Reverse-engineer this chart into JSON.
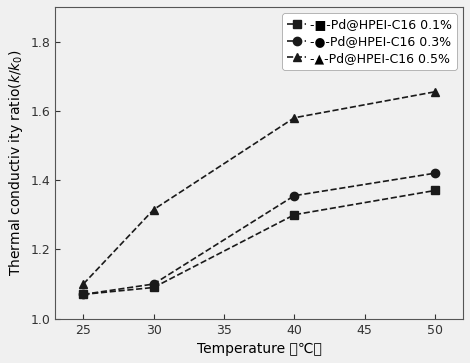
{
  "temperature": [
    25,
    30,
    40,
    50
  ],
  "series": [
    {
      "label": "-■-Pd@HPEI-C16 0.1%",
      "values": [
        1.07,
        1.09,
        1.3,
        1.37
      ],
      "marker": "s",
      "color": "#1a1a1a"
    },
    {
      "label": "-●-Pd@HPEI-C16 0.3%",
      "values": [
        1.07,
        1.1,
        1.355,
        1.42
      ],
      "marker": "o",
      "color": "#1a1a1a"
    },
    {
      "label": "-▲-Pd@HPEI-C16 0.5%",
      "values": [
        1.1,
        1.315,
        1.58,
        1.655
      ],
      "marker": "^",
      "color": "#1a1a1a"
    }
  ],
  "xlabel": "Temperature （℃）",
  "ylabel": "Thermal conductiv ity ratio($k/k_0$)",
  "xlim": [
    23,
    52
  ],
  "ylim": [
    1.0,
    1.9
  ],
  "xticks": [
    25,
    30,
    35,
    40,
    45,
    50
  ],
  "yticks": [
    1.0,
    1.2,
    1.4,
    1.6,
    1.8
  ],
  "legend_loc": "upper right",
  "axis_fontsize": 10,
  "tick_fontsize": 9,
  "legend_fontsize": 9,
  "linewidth": 1.2,
  "markersize": 6,
  "bg_color": "#f0f0f0"
}
